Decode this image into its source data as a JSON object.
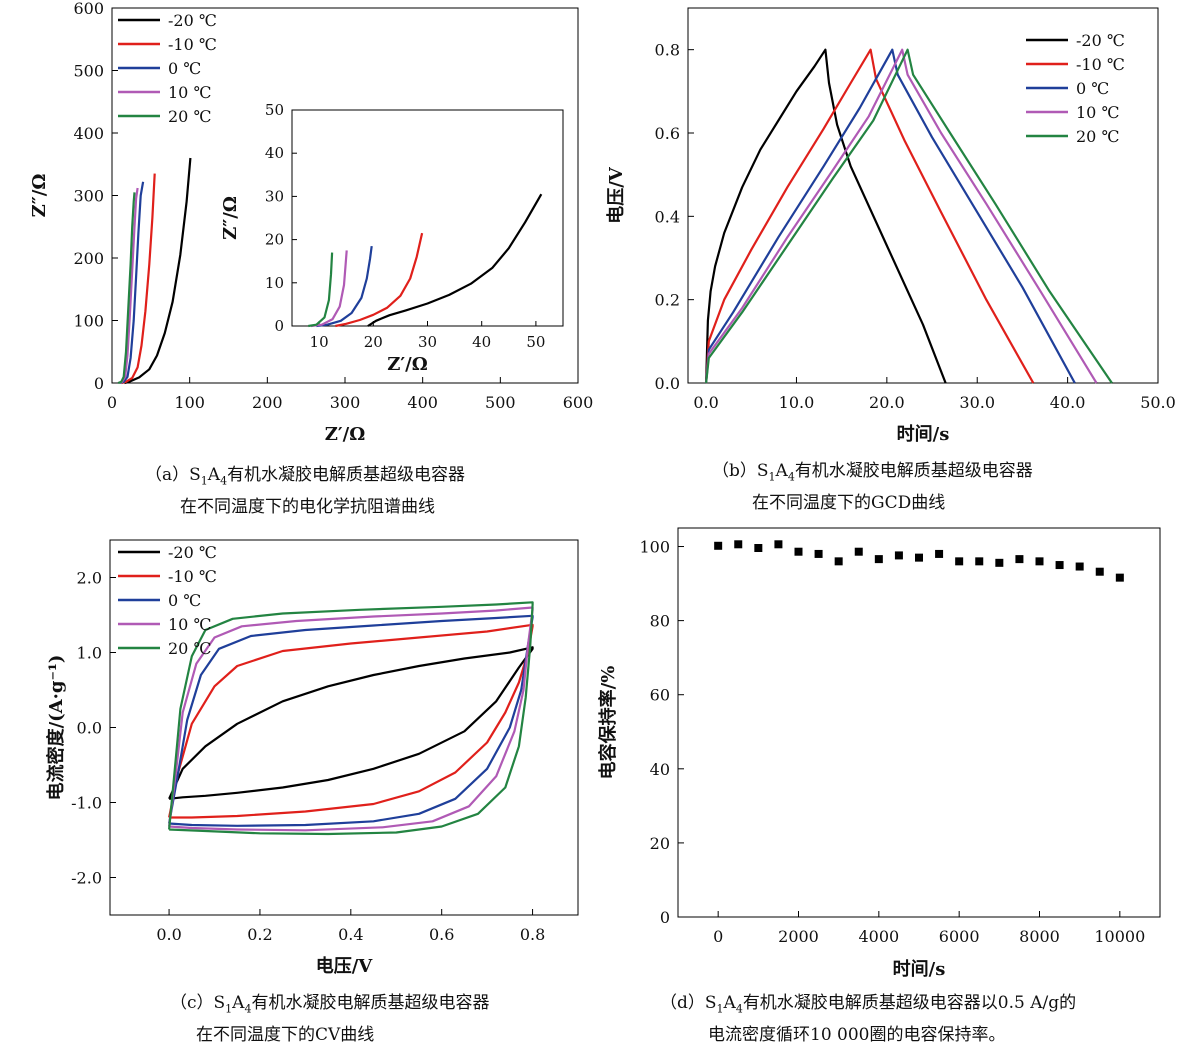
{
  "colors": {
    "-20": "#000000",
    "-10": "#e0201b",
    "0": "#1f3f9a",
    "10": "#b05ab5",
    "20": "#238442"
  },
  "captions": {
    "a": {
      "pre": "（a）S",
      "sub1": "1",
      "mid": "A",
      "sub2": "4",
      "post": "有机水凝胶电解质基超级电容器",
      "line2": "在不同温度下的电化学抗阻谱曲线"
    },
    "b": {
      "pre": "（b）S",
      "sub1": "1",
      "mid": "A",
      "sub2": "4",
      "post": "有机水凝胶电解质基超级电容器",
      "line2": "在不同温度下的GCD曲线"
    },
    "c": {
      "pre": "（c）S",
      "sub1": "1",
      "mid": "A",
      "sub2": "4",
      "post": "有机水凝胶电解质基超级电容器",
      "line2": "在不同温度下的CV曲线"
    },
    "d": {
      "pre": "（d）S",
      "sub1": "1",
      "mid": "A",
      "sub2": "4",
      "post": "有机水凝胶电解质基超级电容器以0.5 A/g的",
      "line2": "电流密度循环10 000圈的电容保持率。"
    }
  },
  "chart_data": [
    {
      "id": "a",
      "type": "line",
      "xlabel": "Z′/Ω",
      "ylabel": "Z″/Ω",
      "xlim": [
        0,
        600
      ],
      "ylim": [
        0,
        600
      ],
      "xticks": [
        0,
        100,
        200,
        300,
        400,
        500,
        600
      ],
      "yticks": [
        0,
        100,
        200,
        300,
        400,
        500,
        600
      ],
      "legend": "top-left",
      "series": [
        {
          "name": "-20 ℃",
          "x": [
            16,
            22,
            35,
            48,
            58,
            68,
            78,
            88,
            96,
            101
          ],
          "y": [
            0,
            2,
            9,
            22,
            44,
            80,
            130,
            205,
            290,
            360
          ]
        },
        {
          "name": "-10 ℃",
          "x": [
            12,
            18,
            26,
            33,
            38,
            43,
            48,
            52,
            55
          ],
          "y": [
            0,
            2,
            8,
            25,
            60,
            115,
            190,
            265,
            335
          ]
        },
        {
          "name": "0 ℃",
          "x": [
            10,
            15,
            20,
            24,
            28,
            31,
            34,
            37,
            40
          ],
          "y": [
            0,
            2,
            10,
            40,
            100,
            170,
            240,
            300,
            322
          ]
        },
        {
          "name": "10 ℃",
          "x": [
            9,
            13,
            17,
            20,
            23,
            26,
            29,
            31,
            33
          ],
          "y": [
            0,
            2,
            10,
            45,
            110,
            180,
            250,
            295,
            312
          ]
        },
        {
          "name": "20 ℃",
          "x": [
            8,
            12,
            15,
            18,
            21,
            24,
            26,
            28,
            29
          ],
          "y": [
            0,
            2,
            10,
            50,
            120,
            190,
            250,
            290,
            305
          ]
        }
      ],
      "inset": {
        "xlabel": "Z′/Ω",
        "ylabel": "Z″/Ω",
        "xlim": [
          5,
          55
        ],
        "ylim": [
          0,
          50
        ],
        "xticks": [
          10,
          20,
          30,
          40,
          50
        ],
        "yticks": [
          0,
          10,
          20,
          30,
          40,
          50
        ],
        "series": [
          {
            "name": "-20 ℃",
            "x": [
              19,
              20.5,
              23,
              26,
              30,
              34,
              38,
              42,
              45,
              48,
              51
            ],
            "y": [
              0,
              1.2,
              2.5,
              3.6,
              5.2,
              7.2,
              9.8,
              13.5,
              18,
              24,
              30.5
            ]
          },
          {
            "name": "-10 ℃",
            "x": [
              13,
              15,
              17.5,
              20,
              22.5,
              25,
              26.8,
              28,
              29
            ],
            "y": [
              0,
              0.5,
              1.4,
              2.6,
              4.2,
              7,
              11,
              16,
              21.5
            ]
          },
          {
            "name": "0 ℃",
            "x": [
              9.5,
              11.5,
              14,
              16,
              17.8,
              18.8,
              19.4,
              19.7
            ],
            "y": [
              0,
              0.3,
              1.2,
              3,
              6.5,
              11,
              15.5,
              18.5
            ]
          },
          {
            "name": "10 ℃",
            "x": [
              8.5,
              10.5,
              12.5,
              13.8,
              14.6,
              14.9,
              15.1
            ],
            "y": [
              0,
              0.3,
              1.6,
              4.5,
              9.5,
              14.5,
              17.5
            ]
          },
          {
            "name": "20 ℃",
            "x": [
              8,
              9.5,
              11,
              11.8,
              12.2,
              12.4
            ],
            "y": [
              0,
              0.3,
              2,
              6,
              12,
              17
            ]
          }
        ]
      }
    },
    {
      "id": "b",
      "type": "line",
      "xlabel": "时间/s",
      "ylabel": "电压/V",
      "xlim": [
        -2,
        50
      ],
      "ylim": [
        0,
        0.9
      ],
      "xticks": [
        0,
        10,
        20,
        30,
        40,
        50
      ],
      "yticks": [
        0.0,
        0.2,
        0.4,
        0.6,
        0.8
      ],
      "legend": "top-right",
      "series": [
        {
          "name": "-20 ℃",
          "x": [
            0,
            0.2,
            0.5,
            1,
            2,
            4,
            6,
            8,
            10,
            12,
            13.2,
            13.6,
            14.5,
            16,
            20,
            24,
            26.5
          ],
          "y": [
            0,
            0.15,
            0.22,
            0.28,
            0.36,
            0.47,
            0.56,
            0.63,
            0.7,
            0.76,
            0.8,
            0.72,
            0.62,
            0.52,
            0.33,
            0.14,
            0
          ]
        },
        {
          "name": "-10 ℃",
          "x": [
            0,
            0.3,
            2,
            5,
            9,
            13,
            16,
            18.2,
            18.8,
            22,
            26,
            31,
            36.2
          ],
          "y": [
            0,
            0.1,
            0.2,
            0.32,
            0.47,
            0.61,
            0.72,
            0.8,
            0.73,
            0.58,
            0.41,
            0.2,
            0
          ]
        },
        {
          "name": "0 ℃",
          "x": [
            0,
            0.3,
            3,
            8,
            13,
            17,
            20.6,
            21.2,
            25,
            30,
            35,
            40.8
          ],
          "y": [
            0,
            0.08,
            0.17,
            0.35,
            0.52,
            0.66,
            0.8,
            0.74,
            0.59,
            0.41,
            0.23,
            0
          ]
        },
        {
          "name": "10 ℃",
          "x": [
            0,
            0.3,
            4,
            9,
            14,
            18,
            21.7,
            22.3,
            26,
            31,
            37,
            43.2
          ],
          "y": [
            0,
            0.07,
            0.18,
            0.35,
            0.51,
            0.64,
            0.8,
            0.74,
            0.6,
            0.43,
            0.22,
            0
          ]
        },
        {
          "name": "20 ℃",
          "x": [
            0,
            0.3,
            4,
            9,
            14,
            18.5,
            22.3,
            22.9,
            27,
            32,
            38,
            44.9
          ],
          "y": [
            0,
            0.06,
            0.17,
            0.33,
            0.49,
            0.63,
            0.8,
            0.74,
            0.6,
            0.43,
            0.22,
            0
          ]
        }
      ]
    },
    {
      "id": "c",
      "type": "line",
      "xlabel": "电压/V",
      "ylabel": "电流密度/(A·g⁻¹)",
      "xlim": [
        -0.13,
        0.9
      ],
      "ylim": [
        -2.5,
        2.5
      ],
      "xticks": [
        0.0,
        0.2,
        0.4,
        0.6,
        0.8
      ],
      "yticks": [
        -2,
        -1,
        0,
        1,
        2
      ],
      "legend": "top-left",
      "series": [
        {
          "name": "-20 ℃",
          "x": [
            0.0,
            0.03,
            0.08,
            0.15,
            0.25,
            0.35,
            0.45,
            0.55,
            0.65,
            0.75,
            0.8,
            0.8,
            0.77,
            0.72,
            0.65,
            0.55,
            0.45,
            0.35,
            0.25,
            0.15,
            0.08,
            0.03,
            0.0
          ],
          "y": [
            -0.95,
            -0.55,
            -0.25,
            0.05,
            0.35,
            0.55,
            0.7,
            0.82,
            0.92,
            1.0,
            1.07,
            1.05,
            0.8,
            0.35,
            -0.05,
            -0.35,
            -0.55,
            -0.7,
            -0.8,
            -0.87,
            -0.91,
            -0.93,
            -0.95
          ]
        },
        {
          "name": "-10 ℃",
          "x": [
            0.0,
            0.02,
            0.05,
            0.1,
            0.15,
            0.25,
            0.4,
            0.55,
            0.7,
            0.8,
            0.8,
            0.79,
            0.77,
            0.74,
            0.7,
            0.63,
            0.55,
            0.45,
            0.3,
            0.15,
            0.05,
            0.0
          ],
          "y": [
            -1.2,
            -0.6,
            0.05,
            0.55,
            0.82,
            1.02,
            1.12,
            1.2,
            1.28,
            1.37,
            1.35,
            1.0,
            0.6,
            0.2,
            -0.2,
            -0.6,
            -0.85,
            -1.02,
            -1.12,
            -1.18,
            -1.2,
            -1.2
          ]
        },
        {
          "name": "0 ℃",
          "x": [
            0.0,
            0.02,
            0.04,
            0.07,
            0.11,
            0.18,
            0.3,
            0.45,
            0.6,
            0.72,
            0.8,
            0.8,
            0.79,
            0.775,
            0.75,
            0.7,
            0.63,
            0.55,
            0.45,
            0.3,
            0.15,
            0.05,
            0.0
          ],
          "y": [
            -1.28,
            -0.6,
            0.1,
            0.7,
            1.05,
            1.22,
            1.3,
            1.36,
            1.42,
            1.46,
            1.49,
            1.47,
            1.1,
            0.5,
            0.0,
            -0.55,
            -0.95,
            -1.15,
            -1.25,
            -1.3,
            -1.31,
            -1.3,
            -1.28
          ]
        },
        {
          "name": "10 ℃",
          "x": [
            0.0,
            0.015,
            0.03,
            0.06,
            0.1,
            0.16,
            0.28,
            0.45,
            0.6,
            0.72,
            0.8,
            0.8,
            0.79,
            0.78,
            0.76,
            0.72,
            0.66,
            0.58,
            0.47,
            0.3,
            0.15,
            0.05,
            0.0
          ],
          "y": [
            -1.32,
            -0.6,
            0.2,
            0.85,
            1.2,
            1.35,
            1.42,
            1.48,
            1.52,
            1.56,
            1.6,
            1.57,
            1.1,
            0.5,
            -0.05,
            -0.65,
            -1.05,
            -1.25,
            -1.33,
            -1.37,
            -1.36,
            -1.34,
            -1.32
          ]
        },
        {
          "name": "20 ℃",
          "x": [
            0.0,
            0.012,
            0.025,
            0.05,
            0.08,
            0.14,
            0.25,
            0.42,
            0.6,
            0.72,
            0.8,
            0.8,
            0.795,
            0.785,
            0.77,
            0.74,
            0.68,
            0.6,
            0.5,
            0.35,
            0.2,
            0.08,
            0.0
          ],
          "y": [
            -1.36,
            -0.6,
            0.25,
            0.95,
            1.3,
            1.45,
            1.52,
            1.57,
            1.61,
            1.64,
            1.67,
            1.64,
            1.1,
            0.4,
            -0.25,
            -0.8,
            -1.15,
            -1.32,
            -1.4,
            -1.42,
            -1.41,
            -1.38,
            -1.36
          ]
        }
      ]
    },
    {
      "id": "d",
      "type": "scatter",
      "xlabel": "时间/s",
      "ylabel": "电容保持率/%",
      "xlim": [
        -1000,
        11000
      ],
      "ylim": [
        0,
        105
      ],
      "xticks": [
        0,
        2000,
        4000,
        6000,
        8000,
        10000
      ],
      "yticks": [
        0,
        20,
        40,
        60,
        80,
        100
      ],
      "legend": "none",
      "x": [
        0,
        500,
        1000,
        1500,
        2000,
        2500,
        3000,
        3500,
        4000,
        4500,
        5000,
        5500,
        6000,
        6500,
        7000,
        7500,
        8000,
        8500,
        9000,
        9500,
        10000
      ],
      "y": [
        100.2,
        100.6,
        99.6,
        100.6,
        98.6,
        98.0,
        96.0,
        98.6,
        96.6,
        97.6,
        97.0,
        98.0,
        96.0,
        96.0,
        95.6,
        96.6,
        96.0,
        95.0,
        94.6,
        93.2,
        91.6
      ]
    }
  ]
}
